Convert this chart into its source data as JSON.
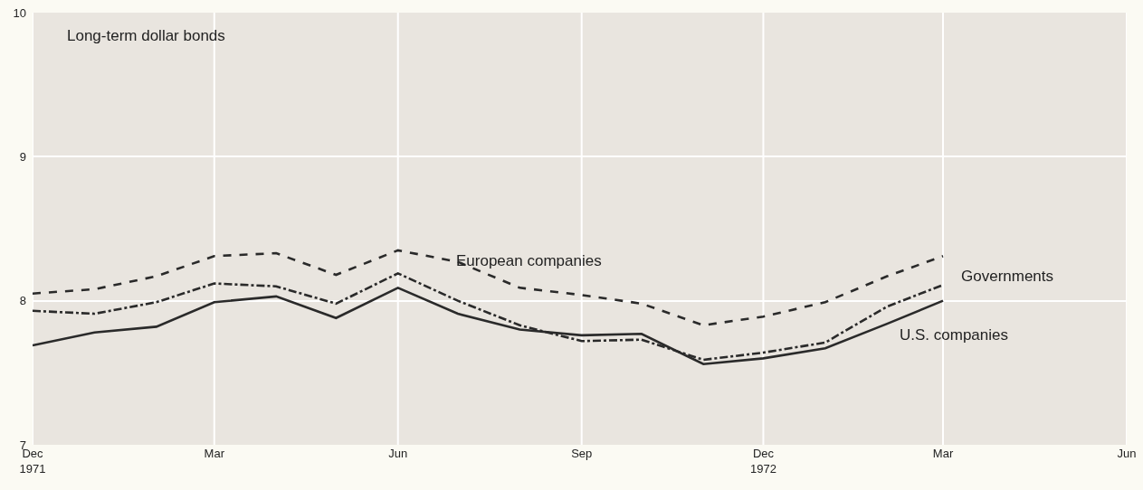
{
  "chart_data": {
    "type": "line",
    "title": "Long-term dollar bonds",
    "x": [
      "1971-12",
      "1972-01",
      "1972-02",
      "1972-03",
      "1972-04",
      "1972-05",
      "1972-06",
      "1972-07",
      "1972-08",
      "1972-09",
      "1972-10",
      "1972-11",
      "1972-12",
      "1973-01",
      "1973-02",
      "1973-03"
    ],
    "series": [
      {
        "name": "European companies",
        "color": "#2a2a2a",
        "line_style": "dashed",
        "values": [
          8.05,
          8.08,
          8.17,
          8.31,
          8.33,
          8.18,
          8.35,
          8.27,
          8.09,
          8.04,
          7.98,
          7.83,
          7.89,
          7.99,
          8.17,
          8.31
        ]
      },
      {
        "name": "Governments",
        "color": "#2a2a2a",
        "line_style": "dashdot",
        "values": [
          7.93,
          7.91,
          7.99,
          8.12,
          8.1,
          7.98,
          8.19,
          8.0,
          7.83,
          7.72,
          7.73,
          7.59,
          7.64,
          7.71,
          7.96,
          8.11
        ]
      },
      {
        "name": "U.S. companies",
        "color": "#2a2a2a",
        "line_style": "solid",
        "values": [
          7.69,
          7.78,
          7.82,
          7.99,
          8.03,
          7.88,
          8.09,
          7.91,
          7.8,
          7.76,
          7.77,
          7.56,
          7.6,
          7.67,
          7.84,
          8.0
        ]
      }
    ],
    "xlim": [
      "1971-12",
      "1973-06"
    ],
    "xticks": [
      {
        "value": "1971-12",
        "label": "Dec\n1971"
      },
      {
        "value": "1972-03",
        "label": "Mar"
      },
      {
        "value": "1972-06",
        "label": "Jun"
      },
      {
        "value": "1972-09",
        "label": "Sep"
      },
      {
        "value": "1972-12",
        "label": "Dec\n1972"
      },
      {
        "value": "1973-03",
        "label": "Mar"
      },
      {
        "value": "1973-06",
        "label": "Jun"
      }
    ],
    "ylim": [
      7,
      10
    ],
    "yticks": [
      7,
      8,
      9,
      10
    ],
    "grid": true,
    "legend": false,
    "marker": "none"
  }
}
